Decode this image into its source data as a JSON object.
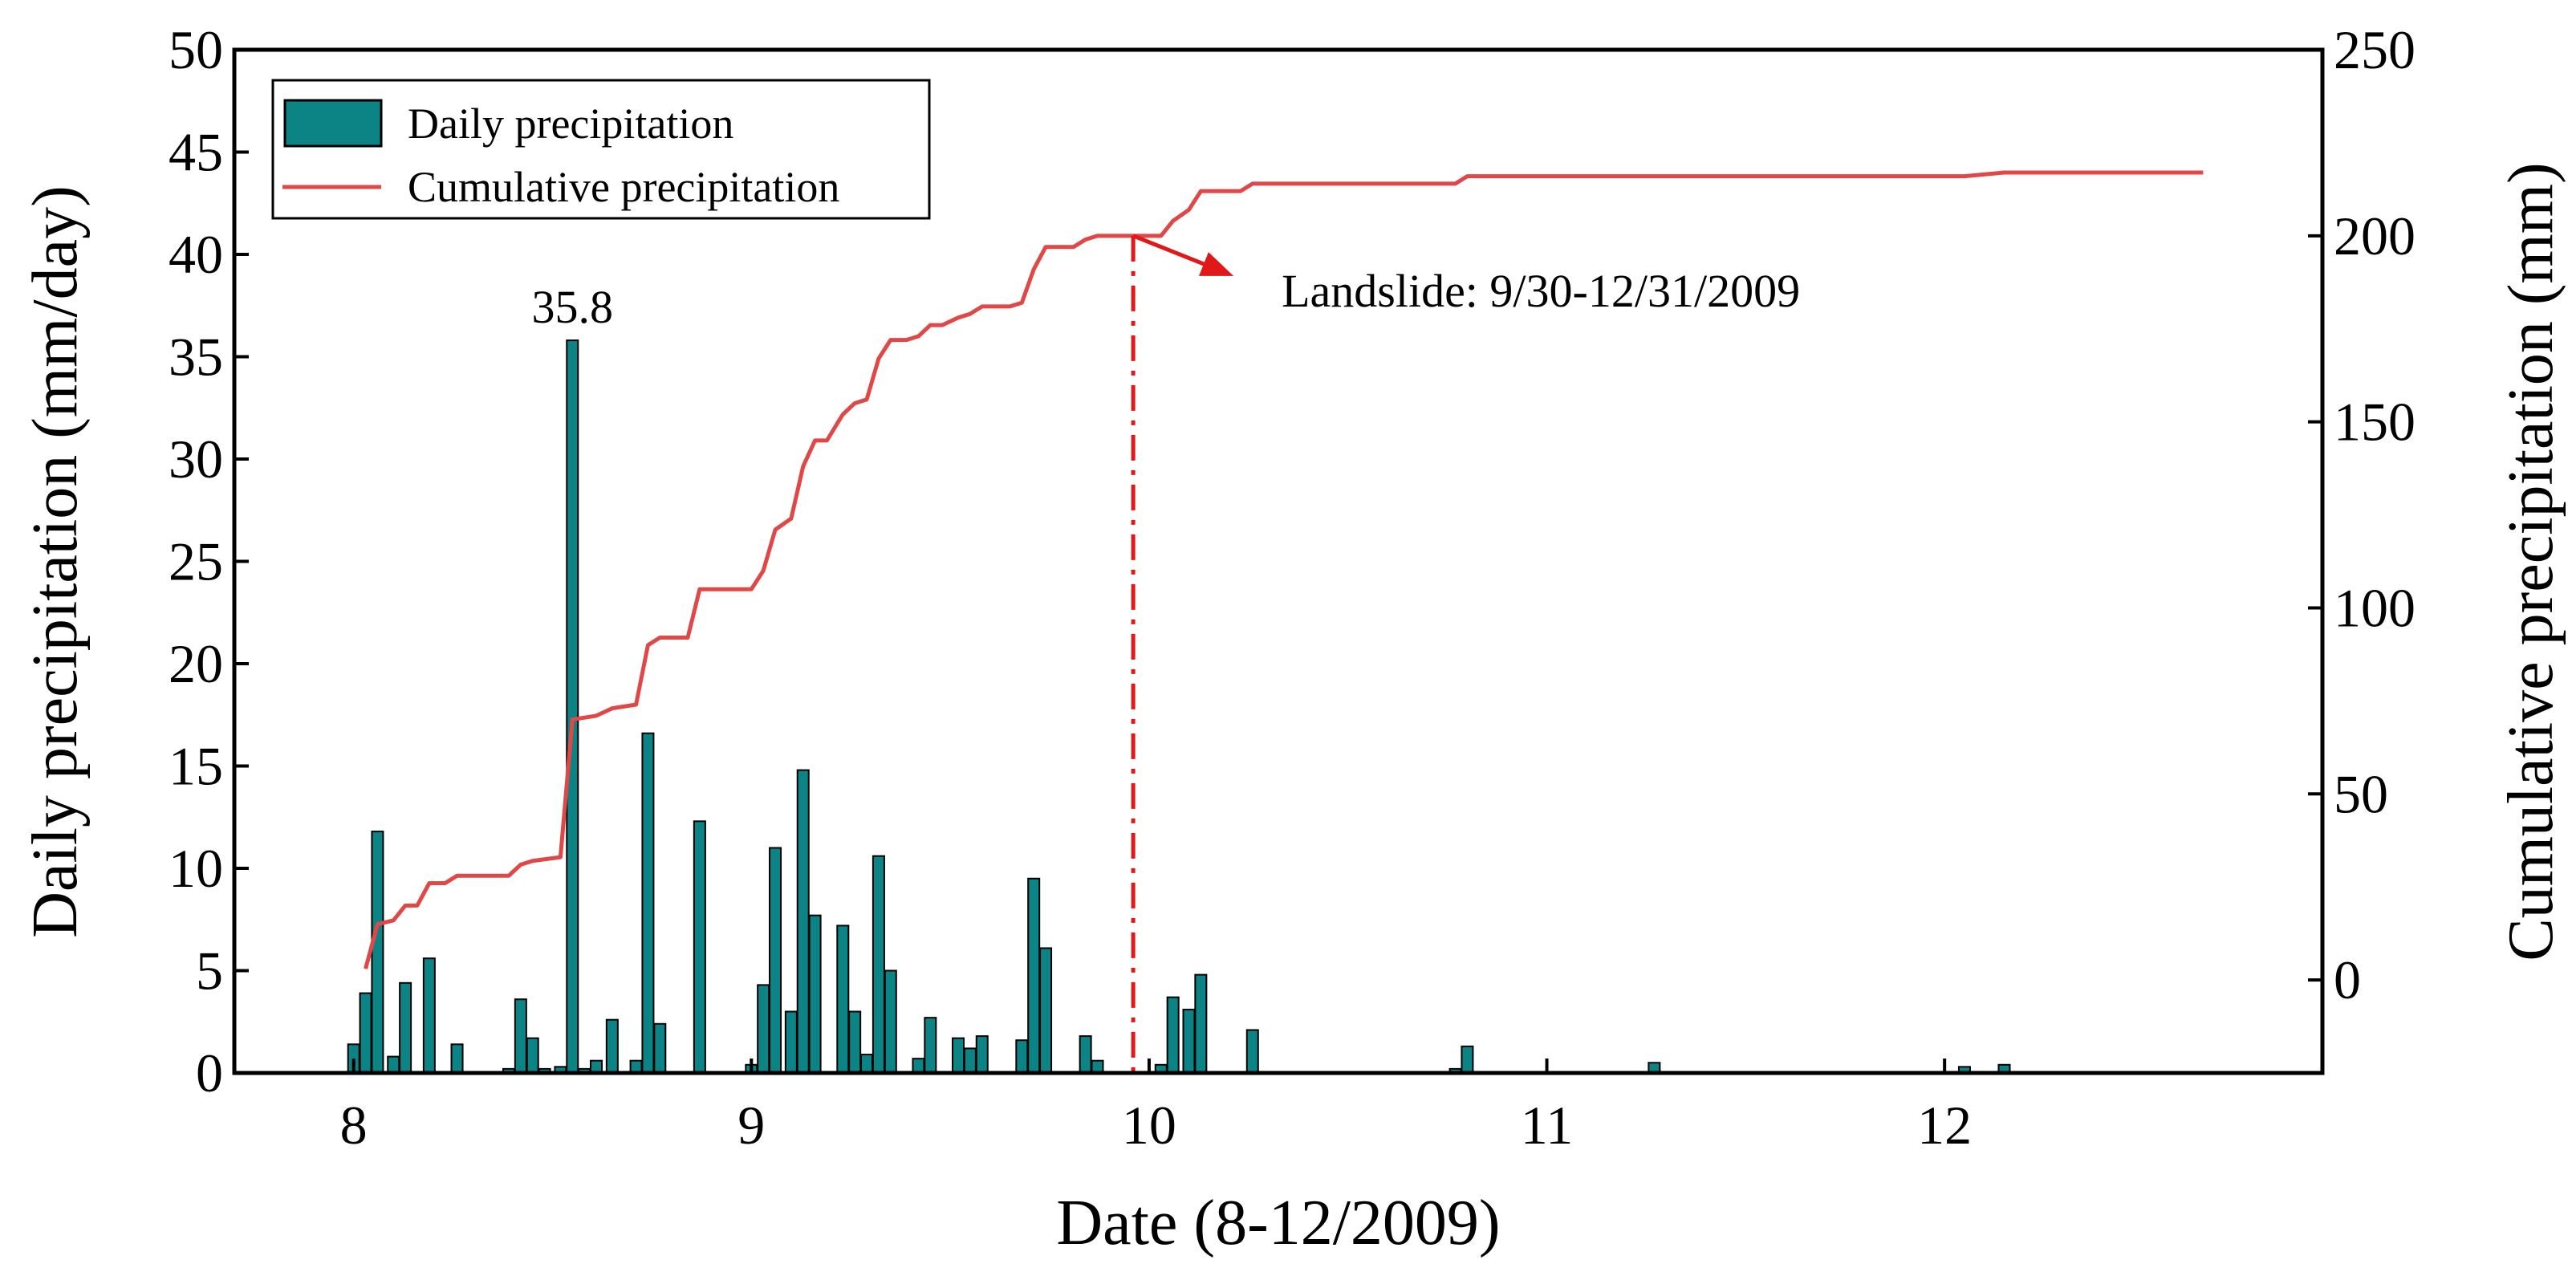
{
  "chart_data": {
    "type": "bar+line",
    "xlabel": "Date (8-12/2009)",
    "ylabel_left": "Daily precipitation (mm/day)",
    "ylabel_right": "Cumulative precipitation (mm)",
    "xlim": [
      7.7,
      12.95
    ],
    "ylim_left": [
      0,
      50
    ],
    "ylim_right": [
      -25,
      250
    ],
    "x_ticks": [
      8,
      9,
      10,
      11,
      12
    ],
    "y_left_ticks": [
      0,
      5,
      10,
      15,
      20,
      25,
      30,
      35,
      40,
      45,
      50
    ],
    "y_right_ticks": [
      0,
      50,
      100,
      150,
      200,
      250
    ],
    "legend": {
      "position": "top-left",
      "entries": [
        "Daily precipitation",
        "Cumulative precipitation"
      ]
    },
    "colors": {
      "bars": "#0c8384",
      "line": "#e04848",
      "annotation": "#e01818"
    },
    "series": [
      {
        "name": "Daily precipitation",
        "type": "bar",
        "axis": "left",
        "points": [
          {
            "x": 8.0,
            "y": 1.4
          },
          {
            "x": 8.03,
            "y": 3.9
          },
          {
            "x": 8.06,
            "y": 11.8
          },
          {
            "x": 8.1,
            "y": 0.8
          },
          {
            "x": 8.13,
            "y": 4.4
          },
          {
            "x": 8.19,
            "y": 5.6
          },
          {
            "x": 8.26,
            "y": 1.4
          },
          {
            "x": 8.39,
            "y": 0.2
          },
          {
            "x": 8.42,
            "y": 3.6
          },
          {
            "x": 8.45,
            "y": 1.7
          },
          {
            "x": 8.48,
            "y": 0.2
          },
          {
            "x": 8.52,
            "y": 0.3
          },
          {
            "x": 8.55,
            "y": 35.8
          },
          {
            "x": 8.58,
            "y": 0.2
          },
          {
            "x": 8.61,
            "y": 0.6
          },
          {
            "x": 8.65,
            "y": 2.6
          },
          {
            "x": 8.71,
            "y": 0.6
          },
          {
            "x": 8.74,
            "y": 16.6
          },
          {
            "x": 8.77,
            "y": 2.4
          },
          {
            "x": 8.87,
            "y": 12.3
          },
          {
            "x": 9.0,
            "y": 0.4
          },
          {
            "x": 9.03,
            "y": 4.3
          },
          {
            "x": 9.06,
            "y": 11.0
          },
          {
            "x": 9.1,
            "y": 3.0
          },
          {
            "x": 9.13,
            "y": 14.8
          },
          {
            "x": 9.16,
            "y": 7.7
          },
          {
            "x": 9.23,
            "y": 7.2
          },
          {
            "x": 9.26,
            "y": 3.0
          },
          {
            "x": 9.29,
            "y": 0.9
          },
          {
            "x": 9.32,
            "y": 10.6
          },
          {
            "x": 9.35,
            "y": 5.0
          },
          {
            "x": 9.42,
            "y": 0.7
          },
          {
            "x": 9.45,
            "y": 2.7
          },
          {
            "x": 9.52,
            "y": 1.7
          },
          {
            "x": 9.55,
            "y": 1.2
          },
          {
            "x": 9.58,
            "y": 1.8
          },
          {
            "x": 9.68,
            "y": 1.6
          },
          {
            "x": 9.71,
            "y": 9.5
          },
          {
            "x": 9.74,
            "y": 6.1
          },
          {
            "x": 9.84,
            "y": 1.8
          },
          {
            "x": 9.87,
            "y": 0.6
          },
          {
            "x": 10.03,
            "y": 0.4
          },
          {
            "x": 10.06,
            "y": 3.7
          },
          {
            "x": 10.1,
            "y": 3.1
          },
          {
            "x": 10.13,
            "y": 4.8
          },
          {
            "x": 10.26,
            "y": 2.1
          },
          {
            "x": 10.77,
            "y": 0.2
          },
          {
            "x": 10.8,
            "y": 1.3
          },
          {
            "x": 11.27,
            "y": 0.5
          },
          {
            "x": 12.05,
            "y": 0.3
          },
          {
            "x": 12.15,
            "y": 0.4
          }
        ]
      },
      {
        "name": "Cumulative precipitation",
        "type": "line",
        "axis": "right",
        "points": [
          {
            "x": 8.03,
            "y": 3
          },
          {
            "x": 8.06,
            "y": 15
          },
          {
            "x": 8.1,
            "y": 16
          },
          {
            "x": 8.13,
            "y": 20
          },
          {
            "x": 8.16,
            "y": 20
          },
          {
            "x": 8.19,
            "y": 26
          },
          {
            "x": 8.23,
            "y": 26
          },
          {
            "x": 8.26,
            "y": 28
          },
          {
            "x": 8.39,
            "y": 28
          },
          {
            "x": 8.42,
            "y": 31
          },
          {
            "x": 8.45,
            "y": 32
          },
          {
            "x": 8.52,
            "y": 33
          },
          {
            "x": 8.55,
            "y": 70
          },
          {
            "x": 8.61,
            "y": 71
          },
          {
            "x": 8.65,
            "y": 73
          },
          {
            "x": 8.71,
            "y": 74
          },
          {
            "x": 8.74,
            "y": 90
          },
          {
            "x": 8.77,
            "y": 92
          },
          {
            "x": 8.84,
            "y": 92
          },
          {
            "x": 8.87,
            "y": 105
          },
          {
            "x": 9.0,
            "y": 105
          },
          {
            "x": 9.03,
            "y": 110
          },
          {
            "x": 9.06,
            "y": 121
          },
          {
            "x": 9.1,
            "y": 124
          },
          {
            "x": 9.13,
            "y": 138
          },
          {
            "x": 9.16,
            "y": 145
          },
          {
            "x": 9.19,
            "y": 145
          },
          {
            "x": 9.23,
            "y": 152
          },
          {
            "x": 9.26,
            "y": 155
          },
          {
            "x": 9.29,
            "y": 156
          },
          {
            "x": 9.32,
            "y": 167
          },
          {
            "x": 9.35,
            "y": 172
          },
          {
            "x": 9.39,
            "y": 172
          },
          {
            "x": 9.42,
            "y": 173
          },
          {
            "x": 9.45,
            "y": 176
          },
          {
            "x": 9.48,
            "y": 176
          },
          {
            "x": 9.52,
            "y": 178
          },
          {
            "x": 9.55,
            "y": 179
          },
          {
            "x": 9.58,
            "y": 181
          },
          {
            "x": 9.65,
            "y": 181
          },
          {
            "x": 9.68,
            "y": 182
          },
          {
            "x": 9.71,
            "y": 191
          },
          {
            "x": 9.74,
            "y": 197
          },
          {
            "x": 9.81,
            "y": 197
          },
          {
            "x": 9.84,
            "y": 199
          },
          {
            "x": 9.87,
            "y": 200
          },
          {
            "x": 10.03,
            "y": 200
          },
          {
            "x": 10.06,
            "y": 204
          },
          {
            "x": 10.1,
            "y": 207
          },
          {
            "x": 10.13,
            "y": 212
          },
          {
            "x": 10.23,
            "y": 212
          },
          {
            "x": 10.26,
            "y": 214
          },
          {
            "x": 10.77,
            "y": 214
          },
          {
            "x": 10.8,
            "y": 216
          },
          {
            "x": 11.27,
            "y": 216
          },
          {
            "x": 12.05,
            "y": 216
          },
          {
            "x": 12.15,
            "y": 217
          },
          {
            "x": 12.65,
            "y": 217
          }
        ]
      }
    ],
    "annotations": [
      {
        "text": "35.8",
        "x": 8.55,
        "y": 35.8,
        "axis": "left"
      },
      {
        "text": "Landslide: 9/30-12/31/2009",
        "x": 9.96,
        "y_right": 200,
        "marker": "vertical dash-dot line with arrow"
      }
    ]
  }
}
